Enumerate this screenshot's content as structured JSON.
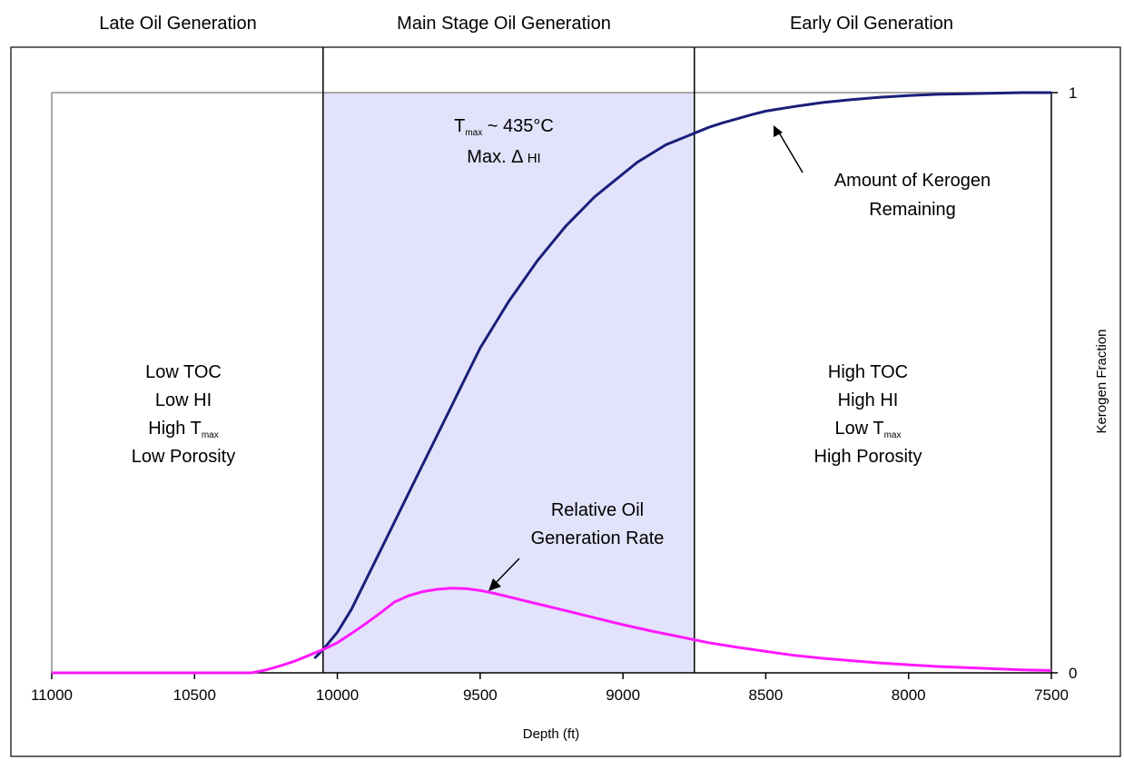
{
  "chart_data": {
    "type": "line",
    "xlabel": "Depth (ft)",
    "ylabel": "Kerogen Fraction",
    "xlim": [
      11000,
      7500
    ],
    "x_reversed": true,
    "ylim": [
      0,
      1
    ],
    "x_ticks": [
      "11000",
      "10500",
      "10000",
      "9500",
      "9000",
      "8500",
      "8000",
      "7500"
    ],
    "x_tick_values": [
      11000,
      10500,
      10000,
      9500,
      9000,
      8500,
      8000,
      7500
    ],
    "y_ticks": [
      "0",
      "1"
    ],
    "y_tick_values": [
      0,
      1
    ],
    "grid": false,
    "zones": [
      {
        "title": "Late Oil Generation",
        "from": 11000,
        "to": 10050,
        "shaded": false
      },
      {
        "title": "Main Stage Oil Generation",
        "from": 10050,
        "to": 8750,
        "shaded": true
      },
      {
        "title": "Early Oil Generation",
        "from": 8750,
        "to": 7500,
        "shaded": false
      }
    ],
    "boundaries": [
      10050,
      8750
    ],
    "series": [
      {
        "color": "#1a1f7a",
        "x": [
          10080,
          10050,
          10000,
          9950,
          9900,
          9850,
          9800,
          9750,
          9700,
          9650,
          9600,
          9550,
          9500,
          9450,
          9400,
          9350,
          9300,
          9250,
          9200,
          9150,
          9100,
          9050,
          9000,
          8950,
          8900,
          8850,
          8800,
          8750,
          8700,
          8650,
          8600,
          8550,
          8500,
          8400,
          8300,
          8200,
          8100,
          8000,
          7900,
          7800,
          7700,
          7600,
          7500
        ],
        "y": [
          0.025,
          0.04,
          0.07,
          0.11,
          0.16,
          0.21,
          0.26,
          0.31,
          0.36,
          0.41,
          0.46,
          0.51,
          0.56,
          0.6,
          0.64,
          0.675,
          0.71,
          0.74,
          0.77,
          0.795,
          0.82,
          0.84,
          0.86,
          0.88,
          0.895,
          0.91,
          0.92,
          0.93,
          0.94,
          0.948,
          0.955,
          0.962,
          0.968,
          0.976,
          0.983,
          0.988,
          0.992,
          0.995,
          0.997,
          0.998,
          0.999,
          1.0,
          1.0
        ]
      },
      {
        "color": "#ff19ff",
        "x": [
          11000,
          10900,
          10800,
          10700,
          10600,
          10500,
          10400,
          10300,
          10250,
          10200,
          10150,
          10100,
          10050,
          10000,
          9950,
          9900,
          9850,
          9800,
          9750,
          9700,
          9650,
          9600,
          9550,
          9500,
          9450,
          9400,
          9300,
          9200,
          9100,
          9000,
          8900,
          8800,
          8750,
          8700,
          8600,
          8500,
          8400,
          8300,
          8200,
          8100,
          8000,
          7900,
          7800,
          7700,
          7600,
          7500
        ],
        "y": [
          0.0,
          0.0,
          0.0,
          0.0,
          0.0,
          0.0,
          0.0,
          0.0,
          0.005,
          0.012,
          0.02,
          0.03,
          0.04,
          0.052,
          0.068,
          0.085,
          0.103,
          0.122,
          0.133,
          0.14,
          0.144,
          0.146,
          0.145,
          0.142,
          0.137,
          0.131,
          0.119,
          0.107,
          0.095,
          0.083,
          0.072,
          0.062,
          0.057,
          0.052,
          0.044,
          0.037,
          0.03,
          0.025,
          0.021,
          0.017,
          0.014,
          0.011,
          0.009,
          0.007,
          0.005,
          0.004
        ]
      }
    ],
    "annotations": {
      "late_lines": [
        "Low TOC",
        "Low HI",
        "High T",
        "Low Porosity"
      ],
      "late_sub": "max",
      "early_lines": [
        "High TOC",
        "High HI",
        "Low T",
        "High Porosity"
      ],
      "early_sub": "max",
      "main_line1": "T",
      "main_line1_sub": "max",
      "main_line1_rest": " ~ 435°C",
      "main_line2": "Max. Δ",
      "main_line2_rest": " HI",
      "kerogen_label": [
        "Amount of Kerogen",
        "Remaining"
      ],
      "oil_label": [
        "Relative Oil",
        "Generation Rate"
      ]
    }
  }
}
